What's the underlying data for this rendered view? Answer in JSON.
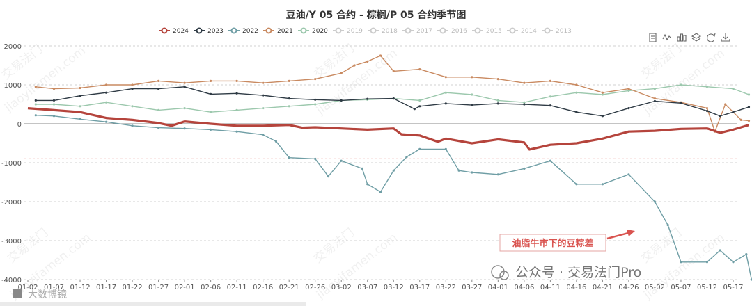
{
  "chart_data": {
    "type": "line",
    "title": "豆油/Y 05 合约 - 棕榈/P 05 合约季节图",
    "ylim": [
      -4000,
      2000
    ],
    "y_ticks": [
      2000,
      1000,
      0,
      -1000,
      -2000,
      -3000,
      -4000
    ],
    "x_categories": [
      "01-02",
      "01-07",
      "01-12",
      "01-17",
      "01-22",
      "01-27",
      "02-01",
      "02-06",
      "02-11",
      "02-16",
      "02-21",
      "02-26",
      "03-02",
      "03-07",
      "03-12",
      "03-17",
      "03-22",
      "03-27",
      "04-01",
      "04-06",
      "04-11",
      "04-16",
      "04-21",
      "04-26",
      "05-02",
      "05-07",
      "05-12",
      "05-17"
    ],
    "reference_line": -900,
    "legend": [
      {
        "name": "2024",
        "color": "#b5443c",
        "active": true
      },
      {
        "name": "2023",
        "color": "#2f3b45",
        "active": true
      },
      {
        "name": "2022",
        "color": "#6f9ea5",
        "active": true
      },
      {
        "name": "2021",
        "color": "#c98a61",
        "active": true
      },
      {
        "name": "2020",
        "color": "#9cc8ad",
        "active": true
      },
      {
        "name": "2019",
        "color": "#cccccc",
        "active": false
      },
      {
        "name": "2018",
        "color": "#cccccc",
        "active": false
      },
      {
        "name": "2017",
        "color": "#cccccc",
        "active": false
      },
      {
        "name": "2016",
        "color": "#cccccc",
        "active": false
      },
      {
        "name": "2015",
        "color": "#cccccc",
        "active": false
      },
      {
        "name": "2014",
        "color": "#cccccc",
        "active": false
      },
      {
        "name": "2013",
        "color": "#cccccc",
        "active": false
      }
    ],
    "series": [
      {
        "name": "2024",
        "color": "#b5443c",
        "width": 3.2,
        "data": [
          [
            0,
            400
          ],
          [
            1,
            350
          ],
          [
            2,
            300
          ],
          [
            3,
            150
          ],
          [
            4,
            100
          ],
          [
            5,
            20
          ],
          [
            5.5,
            -50
          ],
          [
            6,
            60
          ],
          [
            7,
            0
          ],
          [
            8,
            -50
          ],
          [
            9,
            -50
          ],
          [
            10,
            -30
          ],
          [
            10.5,
            -100
          ],
          [
            11,
            -90
          ],
          [
            12,
            -120
          ],
          [
            13,
            -150
          ],
          [
            14,
            -120
          ],
          [
            14.3,
            -270
          ],
          [
            15,
            -300
          ],
          [
            15.7,
            -460
          ],
          [
            16,
            -380
          ],
          [
            17,
            -500
          ],
          [
            18,
            -400
          ],
          [
            19,
            -480
          ],
          [
            19.2,
            -660
          ],
          [
            20,
            -540
          ],
          [
            21,
            -500
          ],
          [
            22,
            -380
          ],
          [
            23,
            -200
          ],
          [
            24,
            -180
          ],
          [
            25,
            -130
          ],
          [
            26,
            -120
          ],
          [
            26.5,
            -230
          ],
          [
            27,
            -150
          ],
          [
            27.6,
            -30
          ]
        ]
      },
      {
        "name": "2023",
        "color": "#2f3b45",
        "width": 1.4,
        "data": [
          [
            0.3,
            600
          ],
          [
            1,
            600
          ],
          [
            2,
            720
          ],
          [
            3,
            800
          ],
          [
            4,
            900
          ],
          [
            5,
            900
          ],
          [
            6,
            950
          ],
          [
            7,
            760
          ],
          [
            8,
            780
          ],
          [
            9,
            730
          ],
          [
            10,
            650
          ],
          [
            11,
            620
          ],
          [
            12,
            600
          ],
          [
            13,
            640
          ],
          [
            14,
            650
          ],
          [
            14.8,
            380
          ],
          [
            15,
            450
          ],
          [
            16,
            520
          ],
          [
            17,
            480
          ],
          [
            18,
            520
          ],
          [
            19,
            500
          ],
          [
            20,
            470
          ],
          [
            21,
            300
          ],
          [
            22,
            200
          ],
          [
            23,
            400
          ],
          [
            24,
            580
          ],
          [
            25,
            530
          ],
          [
            26,
            330
          ],
          [
            26.5,
            200
          ],
          [
            27,
            300
          ],
          [
            27.6,
            430
          ]
        ]
      },
      {
        "name": "2022",
        "color": "#6f9ea5",
        "width": 1.4,
        "data": [
          [
            0.3,
            220
          ],
          [
            1,
            200
          ],
          [
            2,
            120
          ],
          [
            3,
            50
          ],
          [
            4,
            -50
          ],
          [
            5,
            -100
          ],
          [
            6,
            -120
          ],
          [
            7,
            -150
          ],
          [
            8,
            -200
          ],
          [
            9,
            -280
          ],
          [
            9.5,
            -450
          ],
          [
            10,
            -870
          ],
          [
            11,
            -900
          ],
          [
            11.5,
            -1350
          ],
          [
            12,
            -950
          ],
          [
            12.8,
            -1150
          ],
          [
            13,
            -1550
          ],
          [
            13.5,
            -1750
          ],
          [
            14,
            -1200
          ],
          [
            14.5,
            -850
          ],
          [
            15,
            -650
          ],
          [
            16,
            -650
          ],
          [
            16.5,
            -1200
          ],
          [
            17,
            -1250
          ],
          [
            18,
            -1300
          ],
          [
            19,
            -1150
          ],
          [
            20,
            -950
          ],
          [
            21,
            -1550
          ],
          [
            22,
            -1550
          ],
          [
            23,
            -1300
          ],
          [
            24,
            -2000
          ],
          [
            24.5,
            -2600
          ],
          [
            25,
            -3550
          ],
          [
            26,
            -3550
          ],
          [
            26.5,
            -3250
          ],
          [
            27,
            -3550
          ],
          [
            27.5,
            -3350
          ],
          [
            27.7,
            -4000
          ]
        ]
      },
      {
        "name": "2021",
        "color": "#c98a61",
        "width": 1.4,
        "data": [
          [
            0.3,
            950
          ],
          [
            1,
            900
          ],
          [
            2,
            920
          ],
          [
            3,
            1000
          ],
          [
            4,
            1000
          ],
          [
            5,
            1100
          ],
          [
            6,
            1050
          ],
          [
            7,
            1100
          ],
          [
            8,
            1100
          ],
          [
            9,
            1050
          ],
          [
            10,
            1100
          ],
          [
            11,
            1150
          ],
          [
            12,
            1300
          ],
          [
            12.5,
            1500
          ],
          [
            13,
            1600
          ],
          [
            13.5,
            1750
          ],
          [
            14,
            1350
          ],
          [
            15,
            1400
          ],
          [
            16,
            1200
          ],
          [
            17,
            1200
          ],
          [
            18,
            1150
          ],
          [
            19,
            1050
          ],
          [
            20,
            1100
          ],
          [
            21,
            1000
          ],
          [
            22,
            800
          ],
          [
            23,
            900
          ],
          [
            24,
            650
          ],
          [
            25,
            550
          ],
          [
            26,
            400
          ],
          [
            26.3,
            -200
          ],
          [
            26.7,
            500
          ],
          [
            27.3,
            100
          ],
          [
            27.6,
            80
          ]
        ]
      },
      {
        "name": "2020",
        "color": "#9cc8ad",
        "width": 1.4,
        "data": [
          [
            0.3,
            500
          ],
          [
            1,
            500
          ],
          [
            2,
            450
          ],
          [
            3,
            550
          ],
          [
            4,
            450
          ],
          [
            5,
            350
          ],
          [
            6,
            400
          ],
          [
            7,
            300
          ],
          [
            8,
            350
          ],
          [
            9,
            400
          ],
          [
            10,
            450
          ],
          [
            11,
            500
          ],
          [
            12,
            600
          ],
          [
            13,
            620
          ],
          [
            14,
            650
          ],
          [
            15,
            600
          ],
          [
            16,
            800
          ],
          [
            17,
            750
          ],
          [
            18,
            600
          ],
          [
            19,
            550
          ],
          [
            20,
            700
          ],
          [
            21,
            800
          ],
          [
            22,
            750
          ],
          [
            23,
            850
          ],
          [
            24,
            900
          ],
          [
            25,
            1000
          ],
          [
            26,
            950
          ],
          [
            27,
            900
          ],
          [
            27.6,
            750
          ]
        ]
      }
    ],
    "annotation": "油脂牛市下的豆粽差"
  },
  "watermarks": [
    "交易法门",
    "jiaoyifamen.com"
  ],
  "footer": {
    "brand_left": "大数博镜",
    "brand_right": "公众号 · 交易法门Pro"
  },
  "toolbox": [
    "data-view-icon",
    "line-chart-icon",
    "bar-chart-icon",
    "stack-icon",
    "refresh-icon",
    "download-icon"
  ]
}
